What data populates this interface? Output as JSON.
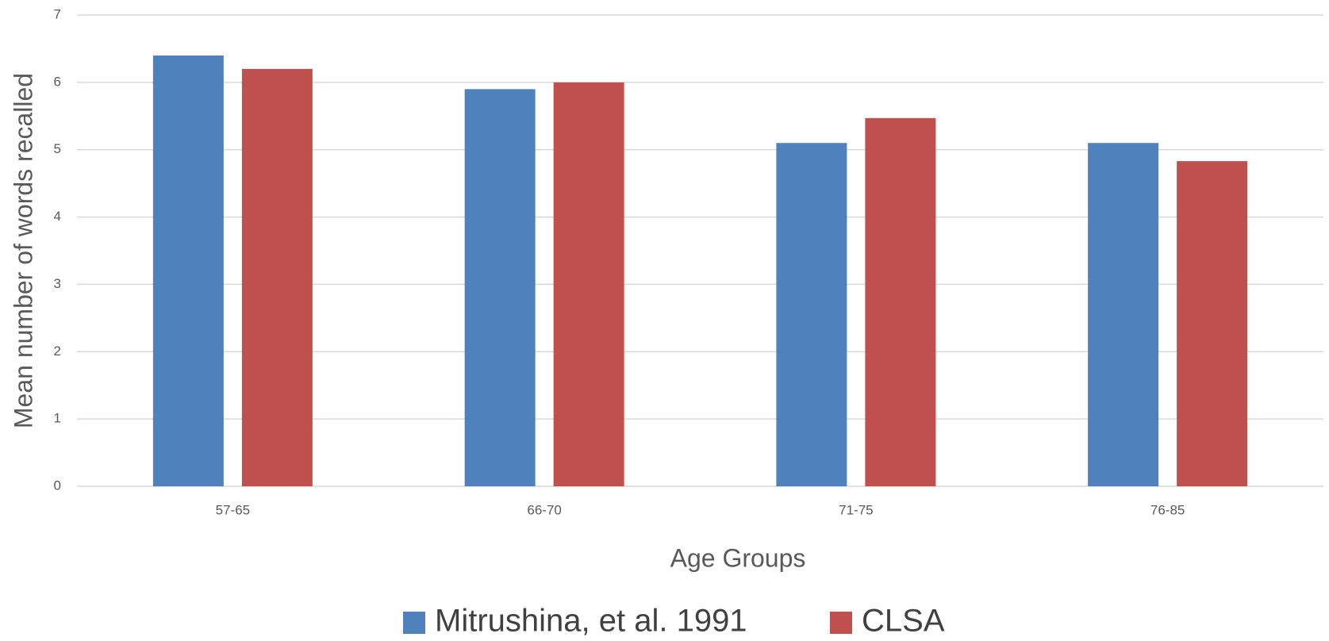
{
  "chart_data": {
    "type": "bar",
    "categories": [
      "57-65",
      "66-70",
      "71-75",
      "76-85"
    ],
    "series": [
      {
        "name": "Mitrushina, et al. 1991",
        "color": "#4f81bd",
        "values": [
          6.4,
          5.9,
          5.1,
          5.1
        ]
      },
      {
        "name": "CLSA",
        "color": "#c0504d",
        "values": [
          6.2,
          6.0,
          5.47,
          4.83
        ]
      }
    ],
    "xlabel": "Age Groups",
    "ylabel": "Mean number of words recalled",
    "ylim": [
      0,
      7
    ],
    "yticks": [
      0,
      1,
      2,
      3,
      4,
      5,
      6,
      7
    ],
    "grid": true,
    "legend": "bottom"
  }
}
